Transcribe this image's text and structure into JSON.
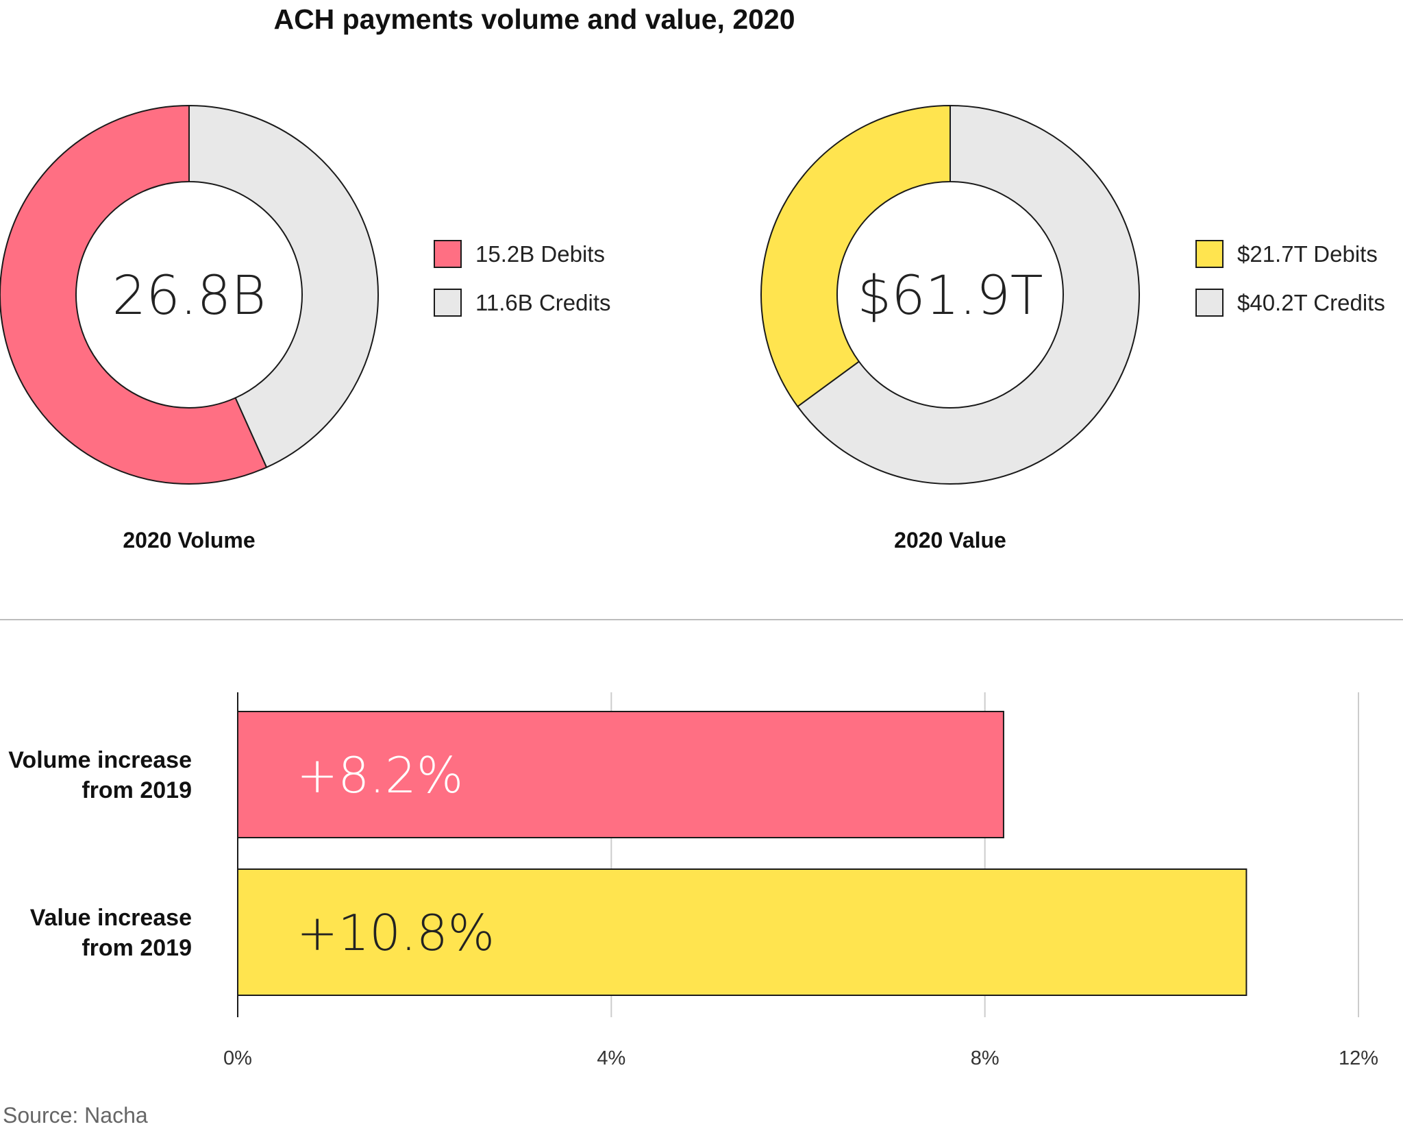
{
  "title": "ACH payments volume and value, 2020",
  "source": "Source: Nacha",
  "colors": {
    "debit_volume": "#ff6f83",
    "debit_value": "#ffe44f",
    "credit": "#e8e8e8",
    "stroke": "#1a1a1a",
    "grid": "#cccccc",
    "divider": "#bdbdbd"
  },
  "chart_data": [
    {
      "type": "pie",
      "variant": "donut",
      "title": "2020 Volume",
      "center_label": "26.8B",
      "slices": [
        {
          "label": "15.2B Debits",
          "value": 15.2,
          "color": "#ff6f83"
        },
        {
          "label": "11.6B Credits",
          "value": 11.6,
          "color": "#e8e8e8"
        }
      ]
    },
    {
      "type": "pie",
      "variant": "donut",
      "title": "2020 Value",
      "center_label": "$61.9T",
      "slices": [
        {
          "label": "$21.7T Debits",
          "value": 21.7,
          "color": "#ffe44f"
        },
        {
          "label": "$40.2T Credits",
          "value": 40.2,
          "color": "#e8e8e8"
        }
      ]
    },
    {
      "type": "bar",
      "orientation": "horizontal",
      "categories": [
        "Volume increase\nfrom 2019",
        "Value increase\nfrom 2019"
      ],
      "values": [
        8.2,
        10.8
      ],
      "value_labels": [
        "+8.2%",
        "+10.8%"
      ],
      "colors": [
        "#ff6f83",
        "#ffe44f"
      ],
      "label_colors": [
        "#ffffff",
        "#222222"
      ],
      "xlim": [
        0,
        12
      ],
      "xticks": [
        0,
        4,
        8,
        12
      ],
      "xtick_labels": [
        "0%",
        "4%",
        "8%",
        "12%"
      ],
      "grid": true
    }
  ]
}
